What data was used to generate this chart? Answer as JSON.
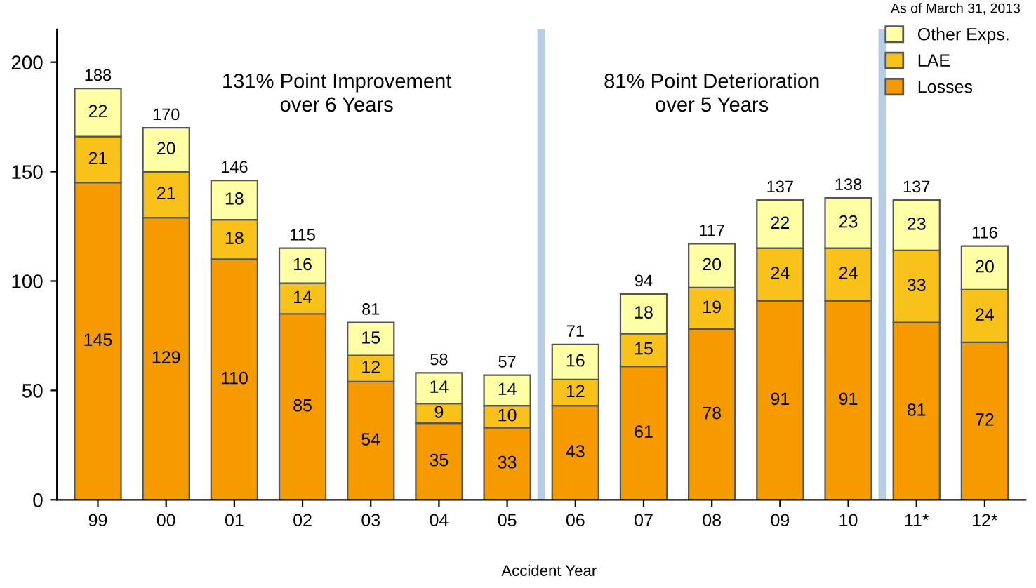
{
  "chart_data": {
    "type": "bar",
    "stacked": true,
    "xlabel": "Accident Year",
    "categories": [
      "99",
      "00",
      "01",
      "02",
      "03",
      "04",
      "05",
      "06",
      "07",
      "08",
      "09",
      "10",
      "11*",
      "12*"
    ],
    "series": [
      {
        "name": "Losses",
        "color": "#f59b00",
        "values": [
          145,
          129,
          110,
          85,
          54,
          35,
          33,
          43,
          61,
          78,
          91,
          91,
          81,
          72
        ]
      },
      {
        "name": "LAE",
        "color": "#f9c21b",
        "values": [
          21,
          21,
          18,
          14,
          12,
          9,
          10,
          12,
          15,
          19,
          24,
          24,
          33,
          24
        ]
      },
      {
        "name": "Other Exps.",
        "color": "#ffffa6",
        "values": [
          22,
          20,
          18,
          16,
          15,
          14,
          14,
          16,
          18,
          20,
          22,
          23,
          23,
          20
        ]
      }
    ],
    "totals": [
      "188",
      "170",
      "146",
      "115",
      "81",
      "58",
      "57",
      "71",
      "94",
      "117",
      "137",
      "138",
      "137",
      "116"
    ],
    "data_labels": true,
    "ylim": [
      0,
      215
    ],
    "yticks": [
      0,
      50,
      100,
      150,
      200
    ],
    "grid": false,
    "legend": "top right",
    "annotations": [
      "131% Point Improvement\nover 6 Years",
      "81% Point Deterioration\nover 5 Years",
      "As of March 31, 2013"
    ]
  }
}
